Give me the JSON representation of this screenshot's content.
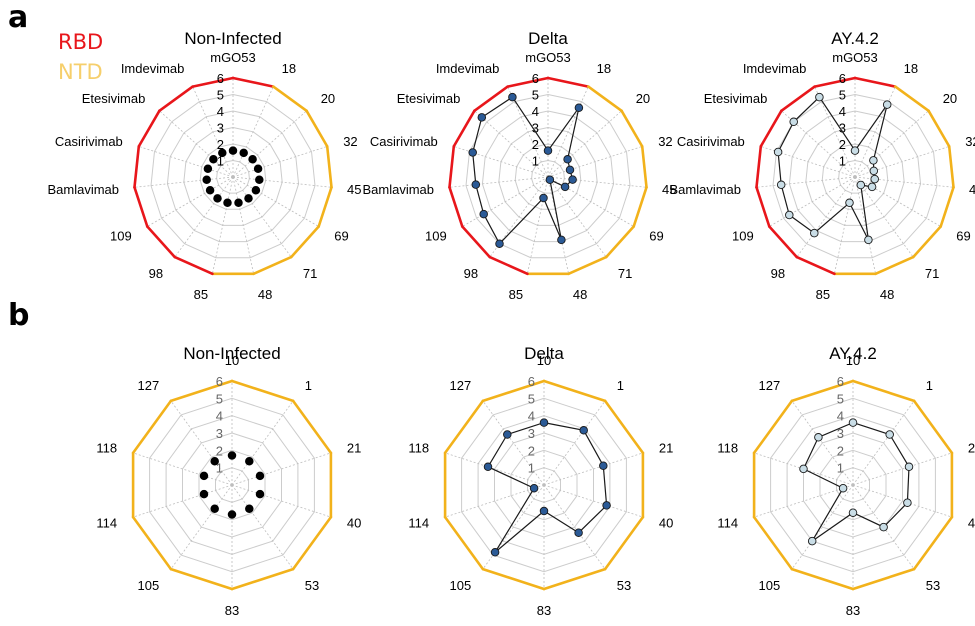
{
  "panel_letters": {
    "a": "a",
    "b": "b"
  },
  "legend": {
    "rbd": {
      "label": "RBD",
      "color": "#e8161b"
    },
    "ntd": {
      "label": "NTD",
      "color": "#f6cf6c"
    }
  },
  "colors": {
    "grid": "#cccccc",
    "rbd_edge": "#e8161b",
    "ntd_edge": "#f2b21b",
    "series": {
      "Non-Infected": "#000000",
      "Delta": "#2b5a96",
      "AY.4.2": "#c9dde6"
    }
  },
  "chart_data": [
    {
      "type": "radar",
      "panel": "a",
      "title": "Non-Infected",
      "axis_labels": [
        "mGO53",
        "18",
        "20",
        "32",
        "45",
        "69",
        "71",
        "48",
        "85",
        "98",
        "109",
        "Bamlavimab",
        "Casirivimab",
        "Etesivimab",
        "Imdevimab"
      ],
      "axis_group": [
        "RBD",
        "NTD",
        "NTD",
        "NTD",
        "NTD",
        "NTD",
        "NTD",
        "NTD",
        "RBD",
        "RBD",
        "RBD",
        "RBD",
        "RBD",
        "RBD",
        "RBD"
      ],
      "rticks": [
        "1",
        "2",
        "3",
        "4",
        "5",
        "6"
      ],
      "rlim": [
        0,
        6
      ],
      "grid": true,
      "values": [
        1.6,
        1.6,
        1.6,
        1.6,
        1.6,
        1.6,
        1.6,
        1.6,
        1.6,
        1.6,
        1.6,
        1.6,
        1.6,
        1.6,
        1.6
      ]
    },
    {
      "type": "radar",
      "panel": "a",
      "title": "Delta",
      "axis_labels": [
        "mGO53",
        "18",
        "20",
        "32",
        "45",
        "69",
        "71",
        "48",
        "85",
        "98",
        "109",
        "Bamlavimab",
        "Casirivimab",
        "Etesivimab",
        "Imdevimab"
      ],
      "axis_group": [
        "RBD",
        "NTD",
        "NTD",
        "NTD",
        "NTD",
        "NTD",
        "NTD",
        "NTD",
        "RBD",
        "RBD",
        "RBD",
        "RBD",
        "RBD",
        "RBD",
        "RBD"
      ],
      "rticks": [
        "1",
        "2",
        "3",
        "4",
        "5",
        "6"
      ],
      "rlim": [
        0,
        6
      ],
      "grid": true,
      "values": [
        1.6,
        4.6,
        1.6,
        1.4,
        1.5,
        1.2,
        0.2,
        3.9,
        1.3,
        5.0,
        4.5,
        4.4,
        4.8,
        5.4,
        5.3
      ]
    },
    {
      "type": "radar",
      "panel": "a",
      "title": "AY.4.2",
      "axis_labels": [
        "mGO53",
        "18",
        "20",
        "32",
        "45",
        "69",
        "71",
        "48",
        "85",
        "98",
        "109",
        "Bamlavimab",
        "Casirivimab",
        "Etesivimab",
        "Imdevimab"
      ],
      "axis_group": [
        "RBD",
        "NTD",
        "NTD",
        "NTD",
        "NTD",
        "NTD",
        "NTD",
        "NTD",
        "RBD",
        "RBD",
        "RBD",
        "RBD",
        "RBD",
        "RBD",
        "RBD"
      ],
      "rticks": [
        "1",
        "2",
        "3",
        "4",
        "5",
        "6"
      ],
      "rlim": [
        0,
        6
      ],
      "grid": true,
      "values": [
        1.6,
        4.8,
        1.5,
        1.2,
        1.2,
        1.2,
        0.6,
        3.9,
        1.6,
        4.2,
        4.6,
        4.5,
        4.9,
        5.0,
        5.3
      ]
    },
    {
      "type": "radar",
      "panel": "b",
      "title": "Non-Infected",
      "axis_labels": [
        "10",
        "1",
        "21",
        "40",
        "53",
        "83",
        "105",
        "114",
        "118",
        "127"
      ],
      "axis_group": [
        "NTD",
        "NTD",
        "NTD",
        "NTD",
        "NTD",
        "NTD",
        "NTD",
        "NTD",
        "NTD",
        "NTD"
      ],
      "rticks": [
        "1",
        "2",
        "3",
        "4",
        "5",
        "6"
      ],
      "rlim": [
        0,
        6
      ],
      "grid": true,
      "values": [
        1.7,
        1.7,
        1.7,
        1.7,
        1.7,
        1.7,
        1.7,
        1.7,
        1.7,
        1.7
      ]
    },
    {
      "type": "radar",
      "panel": "b",
      "title": "Delta",
      "axis_labels": [
        "10",
        "1",
        "21",
        "40",
        "53",
        "83",
        "105",
        "114",
        "118",
        "127"
      ],
      "axis_group": [
        "NTD",
        "NTD",
        "NTD",
        "NTD",
        "NTD",
        "NTD",
        "NTD",
        "NTD",
        "NTD",
        "NTD"
      ],
      "rticks": [
        "1",
        "2",
        "3",
        "4",
        "5",
        "6"
      ],
      "rlim": [
        0,
        6
      ],
      "grid": true,
      "values": [
        3.6,
        3.9,
        3.6,
        3.8,
        3.4,
        1.5,
        4.8,
        0.6,
        3.4,
        3.6
      ]
    },
    {
      "type": "radar",
      "panel": "b",
      "title": "AY.4.2",
      "axis_labels": [
        "10",
        "1",
        "21",
        "40",
        "53",
        "83",
        "105",
        "114",
        "118",
        "127"
      ],
      "axis_group": [
        "NTD",
        "NTD",
        "NTD",
        "NTD",
        "NTD",
        "NTD",
        "NTD",
        "NTD",
        "NTD",
        "NTD"
      ],
      "rticks": [
        "1",
        "2",
        "3",
        "4",
        "5",
        "6"
      ],
      "rlim": [
        0,
        6
      ],
      "grid": true,
      "values": [
        3.6,
        3.6,
        3.4,
        3.3,
        3.0,
        1.6,
        4.0,
        0.6,
        3.0,
        3.4
      ]
    }
  ]
}
